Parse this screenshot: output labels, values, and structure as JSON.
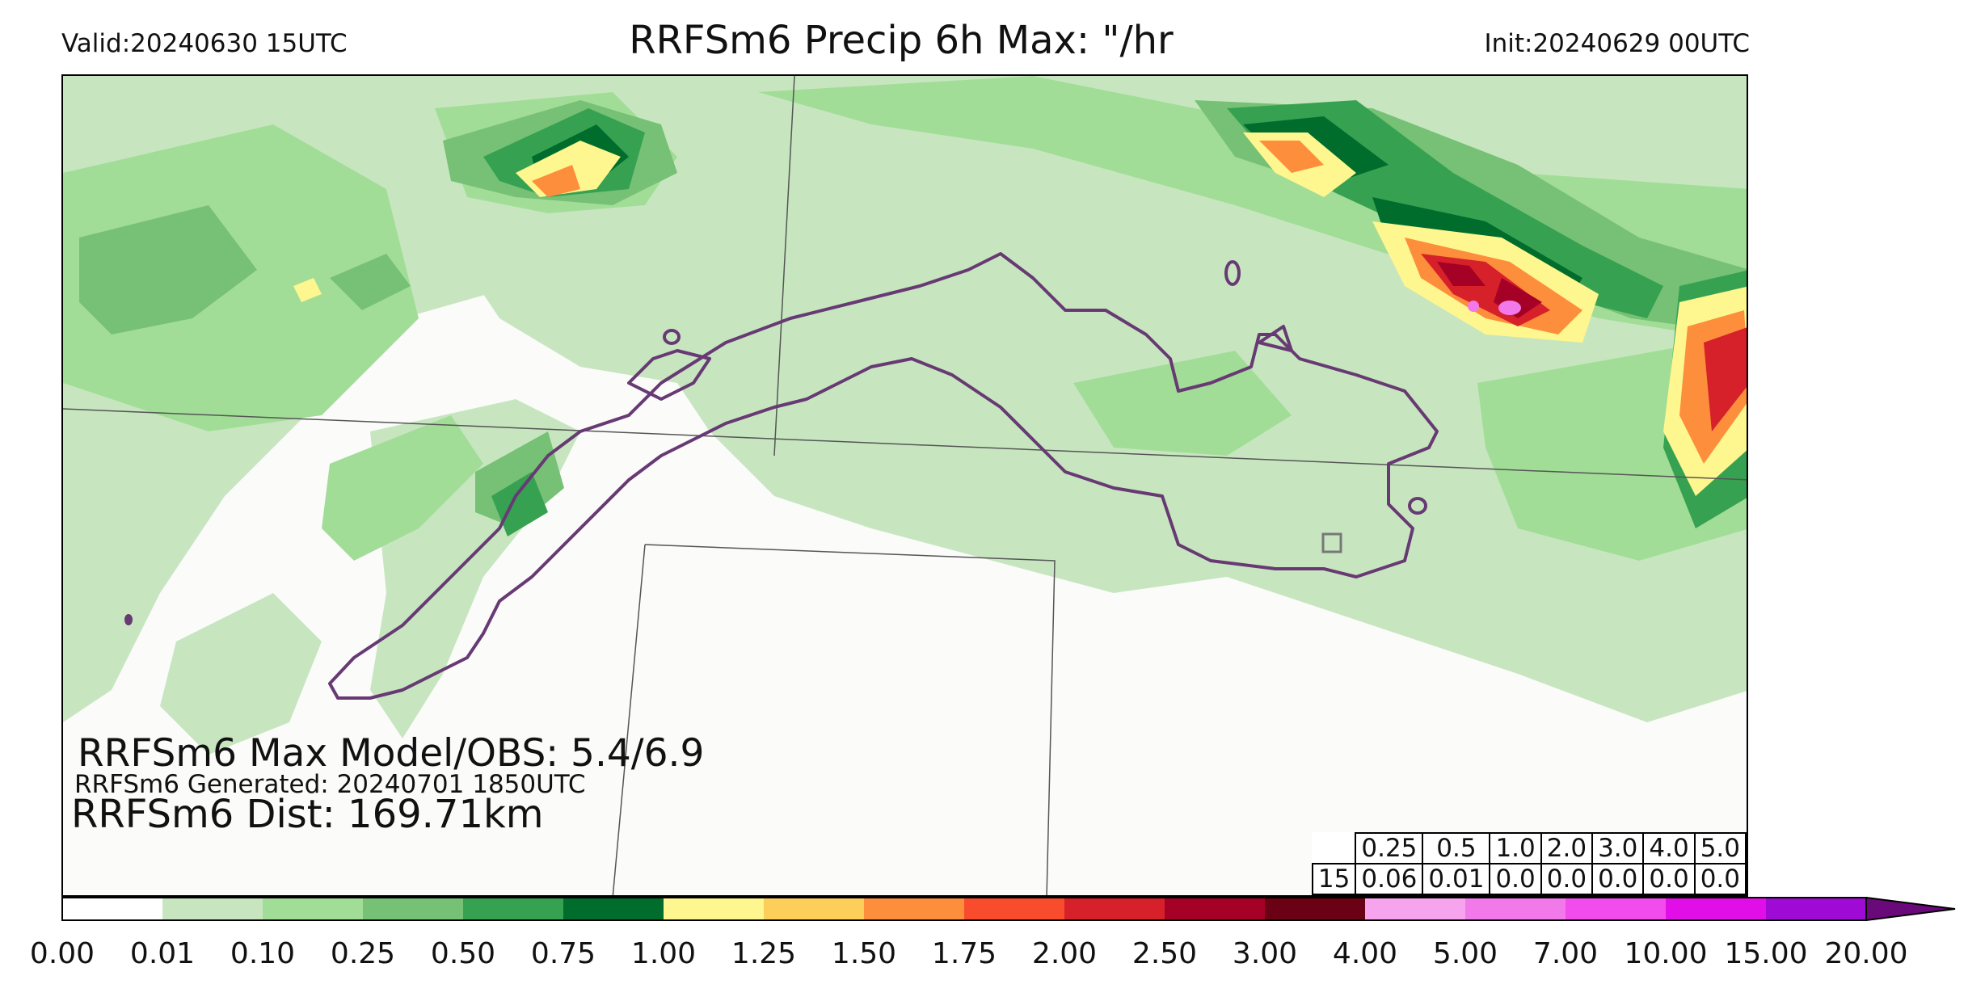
{
  "header": {
    "valid": "Valid:20240630 15UTC",
    "title": "RRFSm6 Precip 6h Max: \"/hr",
    "init": "Init:20240629 00UTC"
  },
  "annotations": {
    "max_model_obs": "RRFSm6 Max Model/OBS: 5.4/6.9",
    "generated": "RRFSm6 Generated: 20240701 1850UTC",
    "dist": "RRFSm6 Dist: 169.71km"
  },
  "stats_table": {
    "thresholds": [
      "0.25",
      "0.5",
      "1.0",
      "2.0",
      "3.0",
      "4.0",
      "5.0"
    ],
    "row_label": "15",
    "values": [
      "0.06",
      "0.01",
      "0.0",
      "0.0",
      "0.0",
      "0.0",
      "0.0"
    ]
  },
  "colorbar": {
    "tick_labels": [
      "0.00",
      "0.01",
      "0.10",
      "0.25",
      "0.50",
      "0.75",
      "1.00",
      "1.25",
      "1.50",
      "1.75",
      "2.00",
      "2.50",
      "3.00",
      "4.00",
      "5.00",
      "7.00",
      "10.00",
      "15.00",
      "20.00"
    ],
    "colors": [
      "#ffffff",
      "#c7e6c0",
      "#a2dd97",
      "#76c176",
      "#37a152",
      "#006d2c",
      "#fef68e",
      "#fdcf5a",
      "#fd8e3c",
      "#f84c2c",
      "#d6202a",
      "#a50026",
      "#6a0115",
      "#f6a4ed",
      "#f279e9",
      "#f24ced",
      "#e20ee8",
      "#9f0bd4"
    ],
    "extend_color": "#6a0a7a"
  },
  "map_colors": {
    "background": "#fbfbfa",
    "boundary": "#673a73",
    "state_lines": "#555555"
  }
}
